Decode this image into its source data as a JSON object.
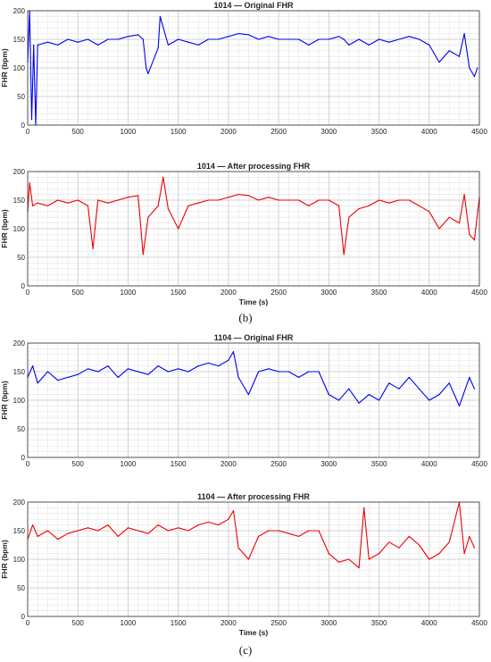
{
  "captions": {
    "b": "(b)",
    "c": "(c)"
  },
  "chart_data": [
    {
      "type": "line",
      "title": "1014 — Original FHR",
      "xlabel": "",
      "ylabel": "FHR (bpm)",
      "xlim": [
        0,
        4500
      ],
      "ylim": [
        0,
        200
      ],
      "x_ticks": [
        "0",
        "500",
        "1000",
        "1500",
        "2000",
        "2500",
        "3000",
        "3500",
        "4000",
        "4500"
      ],
      "y_ticks": [
        "0",
        "50",
        "100",
        "150",
        "200"
      ],
      "grid": true,
      "color": "#0000ee",
      "series": [
        {
          "x": [
            0,
            20,
            40,
            60,
            80,
            100,
            200,
            300,
            400,
            500,
            600,
            700,
            800,
            900,
            1000,
            1100,
            1150,
            1180,
            1200,
            1300,
            1320,
            1400,
            1500,
            1600,
            1700,
            1800,
            1900,
            2000,
            2100,
            2200,
            2300,
            2400,
            2500,
            2600,
            2700,
            2800,
            2900,
            3000,
            3100,
            3150,
            3200,
            3300,
            3400,
            3500,
            3600,
            3700,
            3800,
            3900,
            4000,
            4100,
            4200,
            4300,
            4350,
            4400,
            4450,
            4480
          ],
          "y": [
            110,
            200,
            10,
            140,
            0,
            140,
            145,
            140,
            150,
            145,
            150,
            140,
            150,
            150,
            155,
            158,
            150,
            100,
            90,
            135,
            190,
            140,
            150,
            145,
            140,
            150,
            150,
            155,
            160,
            158,
            150,
            155,
            150,
            150,
            150,
            140,
            150,
            150,
            155,
            150,
            140,
            150,
            140,
            150,
            145,
            150,
            155,
            150,
            140,
            110,
            130,
            120,
            160,
            100,
            85,
            100
          ]
        }
      ]
    },
    {
      "type": "line",
      "title": "1014 — After processing FHR",
      "xlabel": "Time (s)",
      "ylabel": "FHR (bpm)",
      "xlim": [
        0,
        4500
      ],
      "ylim": [
        0,
        200
      ],
      "x_ticks": [
        "0",
        "500",
        "1000",
        "1500",
        "2000",
        "2500",
        "3000",
        "3500",
        "4000",
        "4500"
      ],
      "y_ticks": [
        "0",
        "50",
        "100",
        "150",
        "200"
      ],
      "grid": true,
      "color": "#ee0000",
      "series": [
        {
          "x": [
            0,
            20,
            50,
            100,
            200,
            300,
            400,
            500,
            600,
            650,
            700,
            800,
            900,
            1000,
            1100,
            1150,
            1200,
            1300,
            1350,
            1400,
            1500,
            1600,
            1700,
            1800,
            1900,
            2000,
            2100,
            2200,
            2300,
            2400,
            2500,
            2600,
            2700,
            2800,
            2900,
            3000,
            3100,
            3150,
            3200,
            3300,
            3400,
            3500,
            3600,
            3700,
            3800,
            3900,
            4000,
            4100,
            4200,
            4300,
            4350,
            4400,
            4450,
            4500
          ],
          "y": [
            130,
            180,
            140,
            145,
            140,
            150,
            145,
            150,
            140,
            65,
            150,
            145,
            150,
            155,
            158,
            55,
            120,
            140,
            190,
            135,
            100,
            140,
            145,
            150,
            150,
            155,
            160,
            158,
            150,
            155,
            150,
            150,
            150,
            140,
            150,
            150,
            140,
            55,
            120,
            135,
            140,
            150,
            145,
            150,
            150,
            140,
            130,
            100,
            120,
            110,
            160,
            90,
            80,
            155
          ]
        }
      ]
    },
    {
      "type": "line",
      "title": "1104 — Original FHR",
      "xlabel": "",
      "ylabel": "FHR (bpm)",
      "xlim": [
        0,
        4500
      ],
      "ylim": [
        0,
        200
      ],
      "x_ticks": [
        "0",
        "500",
        "1000",
        "1500",
        "2000",
        "2500",
        "3000",
        "3500",
        "4000",
        "4500"
      ],
      "y_ticks": [
        "0",
        "50",
        "100",
        "150",
        "200"
      ],
      "grid": true,
      "color": "#0000ee",
      "series": [
        {
          "x": [
            0,
            50,
            100,
            200,
            300,
            400,
            500,
            600,
            700,
            800,
            900,
            1000,
            1100,
            1200,
            1300,
            1400,
            1500,
            1600,
            1700,
            1800,
            1900,
            2000,
            2050,
            2100,
            2200,
            2300,
            2400,
            2500,
            2600,
            2700,
            2800,
            2900,
            3000,
            3100,
            3200,
            3300,
            3400,
            3500,
            3600,
            3700,
            3800,
            3900,
            4000,
            4100,
            4200,
            4300,
            4400,
            4450
          ],
          "y": [
            140,
            160,
            130,
            150,
            135,
            140,
            145,
            155,
            150,
            160,
            140,
            155,
            150,
            145,
            160,
            150,
            155,
            150,
            160,
            165,
            160,
            170,
            185,
            140,
            110,
            150,
            155,
            150,
            150,
            140,
            150,
            150,
            110,
            100,
            120,
            95,
            110,
            100,
            130,
            120,
            140,
            120,
            100,
            110,
            130,
            90,
            140,
            120
          ]
        }
      ]
    },
    {
      "type": "line",
      "title": "1104 — After processing FHR",
      "xlabel": "Time (s)",
      "ylabel": "FHR (bpm)",
      "xlim": [
        0,
        4500
      ],
      "ylim": [
        0,
        200
      ],
      "x_ticks": [
        "0",
        "500",
        "1000",
        "1500",
        "2000",
        "2500",
        "3000",
        "3500",
        "4000",
        "4500"
      ],
      "y_ticks": [
        "0",
        "50",
        "100",
        "150",
        "200"
      ],
      "grid": true,
      "color": "#ee0000",
      "series": [
        {
          "x": [
            0,
            50,
            100,
            200,
            300,
            400,
            500,
            600,
            700,
            800,
            900,
            1000,
            1100,
            1200,
            1300,
            1400,
            1500,
            1600,
            1700,
            1800,
            1900,
            2000,
            2050,
            2100,
            2200,
            2300,
            2400,
            2500,
            2600,
            2700,
            2800,
            2900,
            3000,
            3100,
            3200,
            3300,
            3350,
            3400,
            3500,
            3600,
            3700,
            3800,
            3900,
            4000,
            4100,
            4200,
            4300,
            4350,
            4400,
            4450
          ],
          "y": [
            135,
            160,
            140,
            150,
            135,
            145,
            150,
            155,
            150,
            160,
            140,
            155,
            150,
            145,
            160,
            150,
            155,
            150,
            160,
            165,
            160,
            170,
            185,
            120,
            100,
            140,
            150,
            150,
            145,
            140,
            150,
            150,
            110,
            95,
            100,
            85,
            190,
            100,
            110,
            130,
            120,
            140,
            125,
            100,
            110,
            130,
            200,
            110,
            140,
            120
          ]
        }
      ]
    }
  ]
}
